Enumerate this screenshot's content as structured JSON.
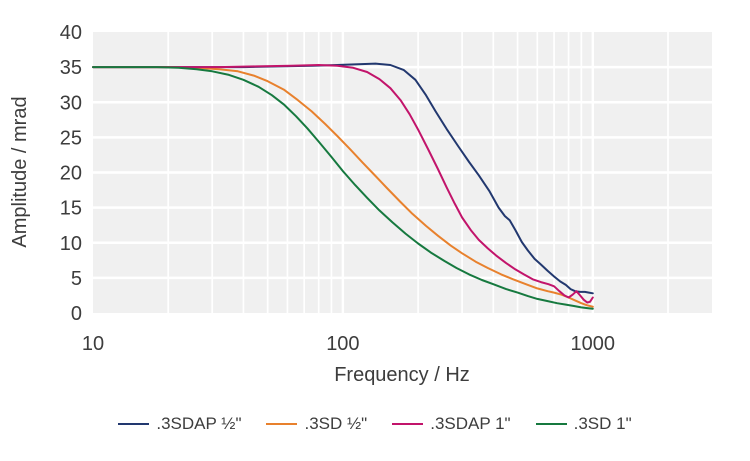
{
  "axes": {
    "x_title": "Frequency / Hz",
    "y_title": "Amplitude / mrad"
  },
  "chart_data": {
    "type": "line",
    "title": "",
    "xlabel": "Frequency / Hz",
    "ylabel": "Amplitude / mrad",
    "x_scale": "log",
    "xlim": [
      10,
      3000
    ],
    "ylim": [
      0,
      40
    ],
    "x_ticks": [
      10,
      100,
      1000
    ],
    "y_ticks": [
      0,
      5,
      10,
      15,
      20,
      25,
      30,
      35,
      40
    ],
    "x_minor_gridlines": [
      20,
      30,
      40,
      50,
      60,
      70,
      80,
      90,
      200,
      300,
      400,
      500,
      600,
      700,
      800,
      900,
      2000,
      3000
    ],
    "grid": "on",
    "plot_bg_color": "#f0f0f0",
    "grid_color": "#ffffff",
    "text_color": "#3d3d3d",
    "legend_position": "bottom",
    "series": [
      {
        "name": ".3SDAP ½\"",
        "color": "#22386F",
        "points": [
          [
            10,
            35
          ],
          [
            14,
            35
          ],
          [
            20,
            35
          ],
          [
            28,
            35
          ],
          [
            40,
            35
          ],
          [
            55,
            35.1
          ],
          [
            75,
            35.2
          ],
          [
            95,
            35.3
          ],
          [
            115,
            35.4
          ],
          [
            135,
            35.5
          ],
          [
            155,
            35.3
          ],
          [
            175,
            34.6
          ],
          [
            195,
            33.2
          ],
          [
            215,
            31.0
          ],
          [
            235,
            28.7
          ],
          [
            260,
            26.2
          ],
          [
            290,
            23.7
          ],
          [
            320,
            21.5
          ],
          [
            350,
            19.6
          ],
          [
            385,
            17.4
          ],
          [
            420,
            15.0
          ],
          [
            445,
            13.8
          ],
          [
            465,
            13.2
          ],
          [
            490,
            11.8
          ],
          [
            520,
            10.1
          ],
          [
            550,
            8.9
          ],
          [
            585,
            7.7
          ],
          [
            620,
            6.9
          ],
          [
            660,
            6.0
          ],
          [
            700,
            5.2
          ],
          [
            740,
            4.5
          ],
          [
            780,
            4.0
          ],
          [
            815,
            3.4
          ],
          [
            850,
            3.1
          ],
          [
            890,
            3.0
          ],
          [
            930,
            3.0
          ],
          [
            965,
            2.9
          ],
          [
            1000,
            2.8
          ]
        ]
      },
      {
        "name": ".3SD ½\"",
        "color": "#E8812D",
        "points": [
          [
            10,
            35
          ],
          [
            15,
            35
          ],
          [
            20,
            35
          ],
          [
            26,
            34.9
          ],
          [
            32,
            34.7
          ],
          [
            38,
            34.4
          ],
          [
            44,
            33.8
          ],
          [
            50,
            33.0
          ],
          [
            58,
            31.8
          ],
          [
            66,
            30.3
          ],
          [
            75,
            28.7
          ],
          [
            85,
            26.9
          ],
          [
            95,
            25.2
          ],
          [
            107,
            23.3
          ],
          [
            120,
            21.4
          ],
          [
            135,
            19.5
          ],
          [
            150,
            17.8
          ],
          [
            170,
            15.8
          ],
          [
            190,
            14.1
          ],
          [
            215,
            12.4
          ],
          [
            240,
            11.0
          ],
          [
            270,
            9.6
          ],
          [
            300,
            8.5
          ],
          [
            340,
            7.3
          ],
          [
            380,
            6.4
          ],
          [
            430,
            5.5
          ],
          [
            480,
            4.8
          ],
          [
            540,
            4.1
          ],
          [
            600,
            3.5
          ],
          [
            660,
            3.1
          ],
          [
            700,
            2.9
          ],
          [
            750,
            2.6
          ],
          [
            800,
            2.2
          ],
          [
            850,
            1.8
          ],
          [
            900,
            1.4
          ],
          [
            950,
            1.1
          ],
          [
            1000,
            0.9
          ]
        ]
      },
      {
        "name": ".3SDAP 1\"",
        "color": "#C2146B",
        "points": [
          [
            10,
            35
          ],
          [
            15,
            35
          ],
          [
            22,
            35
          ],
          [
            32,
            35
          ],
          [
            45,
            35.1
          ],
          [
            62,
            35.2
          ],
          [
            80,
            35.3
          ],
          [
            95,
            35.2
          ],
          [
            110,
            34.9
          ],
          [
            125,
            34.3
          ],
          [
            140,
            33.3
          ],
          [
            155,
            32.0
          ],
          [
            170,
            30.3
          ],
          [
            185,
            28.3
          ],
          [
            200,
            26.1
          ],
          [
            220,
            23.2
          ],
          [
            240,
            20.5
          ],
          [
            260,
            17.9
          ],
          [
            280,
            15.6
          ],
          [
            300,
            13.6
          ],
          [
            325,
            11.8
          ],
          [
            350,
            10.4
          ],
          [
            380,
            9.2
          ],
          [
            410,
            8.2
          ],
          [
            450,
            7.1
          ],
          [
            490,
            6.2
          ],
          [
            530,
            5.5
          ],
          [
            575,
            4.8
          ],
          [
            620,
            4.4
          ],
          [
            665,
            4.1
          ],
          [
            700,
            3.8
          ],
          [
            735,
            3.1
          ],
          [
            770,
            2.5
          ],
          [
            800,
            2.2
          ],
          [
            830,
            2.6
          ],
          [
            860,
            3.1
          ],
          [
            890,
            2.5
          ],
          [
            920,
            1.9
          ],
          [
            950,
            1.5
          ],
          [
            975,
            1.6
          ],
          [
            1000,
            2.2
          ]
        ]
      },
      {
        "name": ".3SD 1\"",
        "color": "#16793F",
        "points": [
          [
            10,
            35
          ],
          [
            14,
            35
          ],
          [
            18,
            35
          ],
          [
            22,
            34.9
          ],
          [
            26,
            34.7
          ],
          [
            30,
            34.4
          ],
          [
            35,
            33.9
          ],
          [
            40,
            33.2
          ],
          [
            46,
            32.2
          ],
          [
            52,
            31.0
          ],
          [
            58,
            29.7
          ],
          [
            65,
            28.0
          ],
          [
            72,
            26.3
          ],
          [
            80,
            24.4
          ],
          [
            90,
            22.2
          ],
          [
            100,
            20.2
          ],
          [
            112,
            18.2
          ],
          [
            125,
            16.4
          ],
          [
            140,
            14.6
          ],
          [
            158,
            12.9
          ],
          [
            178,
            11.3
          ],
          [
            200,
            9.9
          ],
          [
            225,
            8.6
          ],
          [
            255,
            7.4
          ],
          [
            285,
            6.4
          ],
          [
            320,
            5.5
          ],
          [
            360,
            4.7
          ],
          [
            400,
            4.1
          ],
          [
            450,
            3.4
          ],
          [
            500,
            2.9
          ],
          [
            550,
            2.4
          ],
          [
            600,
            2.0
          ],
          [
            660,
            1.7
          ],
          [
            720,
            1.4
          ],
          [
            780,
            1.2
          ],
          [
            840,
            1.0
          ],
          [
            900,
            0.8
          ],
          [
            950,
            0.7
          ],
          [
            1000,
            0.6
          ]
        ]
      }
    ]
  }
}
